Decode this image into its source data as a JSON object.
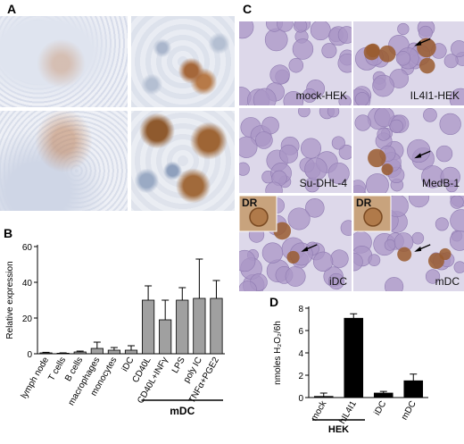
{
  "panels": {
    "A": {
      "label": "A"
    },
    "B": {
      "label": "B"
    },
    "C": {
      "label": "C",
      "tiles": [
        {
          "label": "mock-HEK",
          "tag": "",
          "arrow": false
        },
        {
          "label": "IL4I1-HEK",
          "tag": "",
          "arrow": true
        },
        {
          "label": "Su-DHL-4",
          "tag": "",
          "arrow": false
        },
        {
          "label": "MedB-1",
          "tag": "",
          "arrow": true
        },
        {
          "label": "iDC",
          "tag": "DR",
          "arrow": true
        },
        {
          "label": "mDC",
          "tag": "DR",
          "arrow": true
        }
      ]
    },
    "D": {
      "label": "D"
    }
  },
  "chart_data": [
    {
      "type": "bar",
      "panel": "B",
      "categories": [
        "lymph node",
        "T cells",
        "B cells",
        "macrophages",
        "monocytes",
        "iDC",
        "CD40L",
        "CD40L+INFγ",
        "LPS",
        "poly IC",
        "TNFα+PGE2"
      ],
      "values": [
        0.5,
        0.3,
        1,
        3,
        2,
        2,
        30,
        19,
        30,
        31,
        31
      ],
      "errors": [
        0.3,
        0.2,
        0.5,
        3.5,
        1.5,
        2.5,
        8,
        11,
        7,
        22,
        10
      ],
      "ylabel": "Relative expression",
      "yticks": [
        0,
        20,
        40,
        60
      ],
      "ylim": [
        0,
        60
      ],
      "group_label": "mDC",
      "bar_color": "#a0a0a0"
    },
    {
      "type": "bar",
      "panel": "D",
      "categories": [
        "mock",
        "hIL4I1",
        "iDC",
        "mDC"
      ],
      "values": [
        0.1,
        7.1,
        0.4,
        1.5
      ],
      "errors": [
        0.3,
        0.4,
        0.15,
        0.6
      ],
      "ylabel": "nmoles H₂O₂/6h",
      "yticks": [
        0,
        2,
        4,
        6,
        8
      ],
      "ylim": [
        0,
        8
      ],
      "group_label": "HEK",
      "bar_color": "#000000"
    }
  ]
}
